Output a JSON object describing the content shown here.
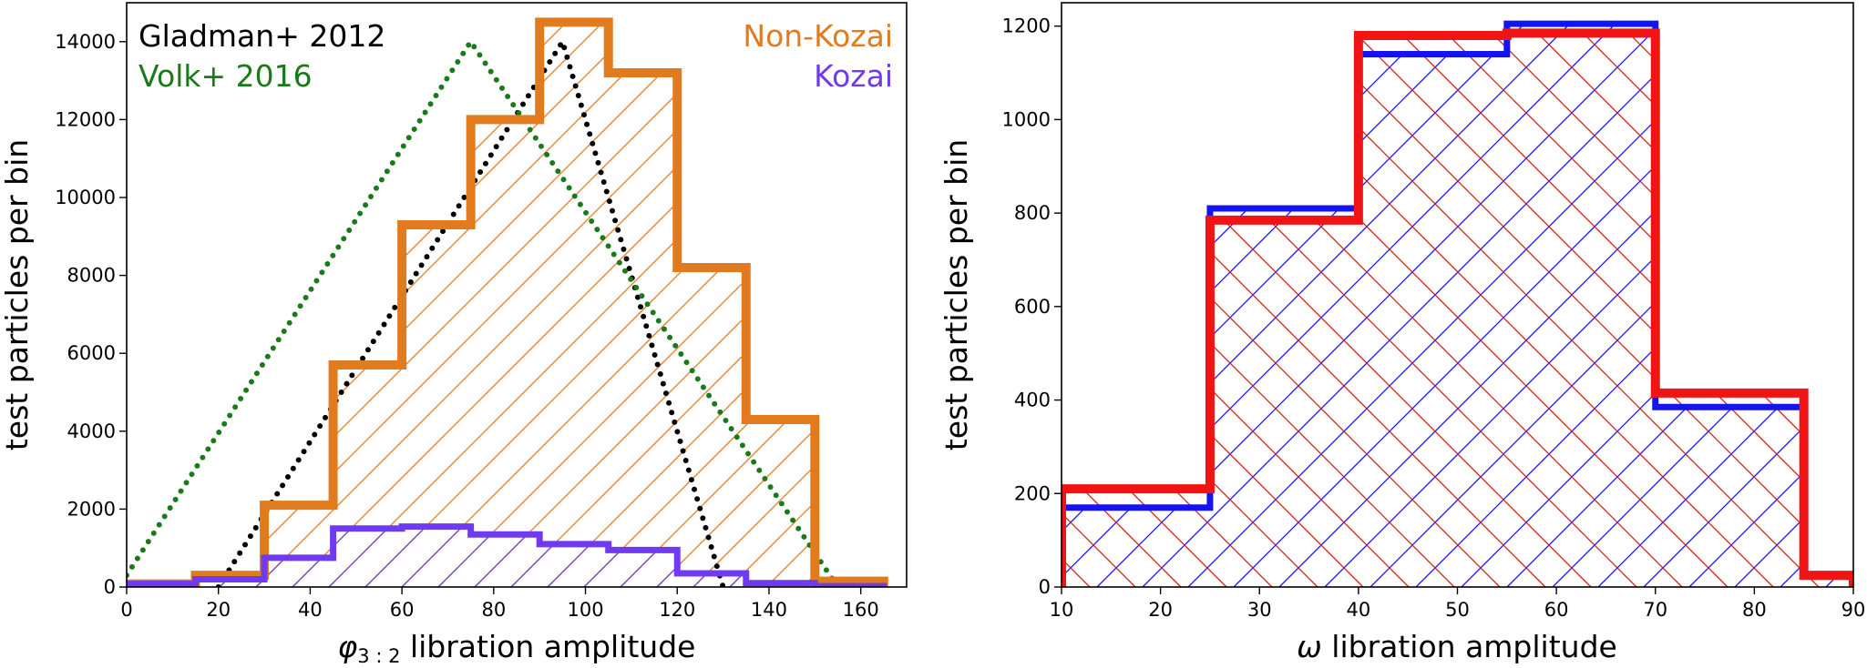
{
  "chart_data": [
    {
      "type": "histogram",
      "xlabel_symbol": "φ",
      "xlabel_subscript": "3 : 2",
      "xlabel_rest": " libration amplitude",
      "ylabel": "test particles per bin",
      "xlim": [
        0,
        170
      ],
      "ylim": [
        0,
        15000
      ],
      "xticks": [
        "0",
        "20",
        "40",
        "60",
        "80",
        "100",
        "120",
        "140",
        "160"
      ],
      "yticks": [
        "0",
        "2000",
        "4000",
        "6000",
        "8000",
        "10000",
        "12000",
        "14000"
      ],
      "series": [
        {
          "name": "Non-Kozai",
          "style": "step-hatched",
          "color": "#E27A1E",
          "edges": [
            0,
            15,
            30,
            45,
            60,
            75,
            90,
            105,
            120,
            135,
            150,
            165
          ],
          "values": [
            80,
            300,
            2100,
            5700,
            9300,
            12000,
            14500,
            13200,
            8200,
            4300,
            150
          ]
        },
        {
          "name": "Kozai",
          "style": "step-hatched",
          "color": "#6F3AF2",
          "edges": [
            0,
            15,
            30,
            45,
            60,
            75,
            90,
            105,
            120,
            135,
            150,
            165
          ],
          "values": [
            80,
            200,
            750,
            1500,
            1550,
            1350,
            1100,
            950,
            350,
            100,
            20
          ]
        }
      ],
      "curves": [
        {
          "name": "Gladman+ 2012",
          "style": "dotted",
          "color": "#000000",
          "x": [
            20,
            95,
            130
          ],
          "y": [
            0,
            14000,
            0
          ]
        },
        {
          "name": "Volk+ 2016",
          "style": "dotted",
          "color": "#1A7A1A",
          "x": [
            0,
            75,
            155
          ],
          "y": [
            300,
            14000,
            0
          ]
        }
      ],
      "legend": {
        "top_left": [
          "Gladman+ 2012",
          "Volk+ 2016"
        ],
        "top_right": [
          "Non-Kozai",
          "Kozai"
        ]
      }
    },
    {
      "type": "histogram",
      "xlabel_symbol": "ω",
      "xlabel_rest": " libration amplitude",
      "ylabel": "test particles per bin",
      "xlim": [
        10,
        90
      ],
      "ylim": [
        0,
        1250
      ],
      "xticks": [
        "10",
        "20",
        "30",
        "40",
        "50",
        "60",
        "70",
        "80",
        "90"
      ],
      "yticks": [
        "0",
        "200",
        "400",
        "600",
        "800",
        "1000",
        "1200"
      ],
      "series": [
        {
          "style": "step-hatched",
          "color": "#1414F0",
          "edges": [
            10,
            25,
            40,
            55,
            70,
            85,
            90
          ],
          "values": [
            170,
            810,
            1140,
            1205,
            385,
            25
          ]
        },
        {
          "style": "step-hatched",
          "color": "#F01414",
          "edges": [
            10,
            25,
            40,
            55,
            70,
            85,
            90
          ],
          "values": [
            210,
            785,
            1180,
            1185,
            415,
            25
          ]
        }
      ]
    }
  ]
}
